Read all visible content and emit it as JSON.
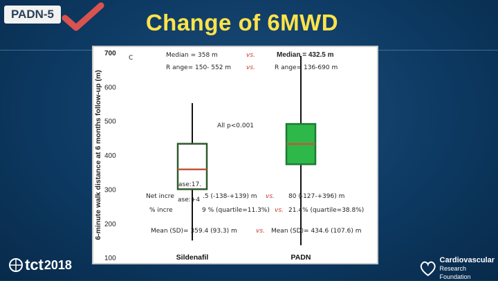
{
  "slide": {
    "label": "PADN-5",
    "title": "Change of 6MWD",
    "brand": {
      "left_main": "tct",
      "left_year": "2018",
      "right_line1": "Cardiovascular",
      "right_line2": "Research Foundation"
    }
  },
  "annotations": {
    "panel_letter": "C",
    "sildenafil_median": "Median = 358 m",
    "vs1": "vs.",
    "padn_median": "Median = 432.5 m",
    "sildenafil_range": "R ange= 150- 552 m",
    "vs2": "vs.",
    "padn_range": "R ange= 136-690 m",
    "pvalue": "All p<0.001",
    "net_inc_top": "ase:17.",
    "net_label": "Net incre",
    "net_mid": "ase:+4",
    "net_value": ".5 (-138-+139) m",
    "vs3": "vs.",
    "net_padn": "80 (-127-+396) m",
    "pct_label": "% incre",
    "pct_values": "9 % (quartile=11.3%)",
    "vs4": "vs.",
    "pct_padn": "21.4% (quartile=38.8%)",
    "mean_sildenafil": "Mean (SD)= 359.4 (93.3) m",
    "vs5": "vs.",
    "mean_padn": "Mean (SD)= 434.6 (107.6) m"
  },
  "chart_data": {
    "type": "box",
    "ylabel": "6-minute walk distance at 6 months follow-up (m)",
    "ylim": [
      80,
      720
    ],
    "yticks": [
      100,
      200,
      300,
      400,
      500,
      600,
      700
    ],
    "categories": [
      "Sildenafil",
      "PADN"
    ],
    "series": [
      {
        "name": "Sildenafil",
        "min": 150,
        "q1": 300,
        "median": 358,
        "q3": 433,
        "max": 552,
        "fill": "#ffffff",
        "stroke": "#2e5a2e"
      },
      {
        "name": "PADN",
        "min": 136,
        "q1": 373,
        "median": 432.5,
        "q3": 491,
        "max": 690,
        "fill": "#2eb84a",
        "stroke": "#1e7a32"
      }
    ],
    "median_color": "#c0573b"
  }
}
